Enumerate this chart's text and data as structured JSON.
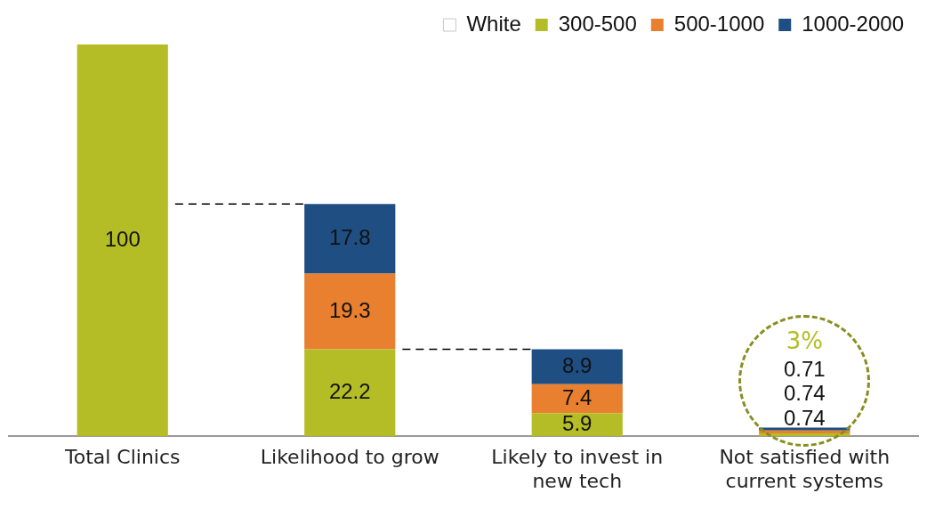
{
  "chart_data": {
    "type": "bar",
    "stacked": true,
    "data_labels": true,
    "grid": false,
    "legend": "top",
    "tick_labels": "x",
    "categories": [
      "Total Clinics",
      "Likelihood to grow",
      "Likely to invest in new tech",
      "Not satisfied with current systems"
    ],
    "series": [
      {
        "name": "White",
        "color": "#ffffff",
        "values": [
          null,
          null,
          null,
          null
        ]
      },
      {
        "name": "300-500",
        "color": "#b5bd26",
        "values": [
          100,
          22.2,
          5.9,
          0.74
        ]
      },
      {
        "name": "500-1000",
        "color": "#e8802f",
        "values": [
          null,
          19.3,
          7.4,
          0.74
        ]
      },
      {
        "name": "1000-2000",
        "color": "#1f4e82",
        "values": [
          null,
          17.8,
          8.9,
          0.71
        ]
      }
    ],
    "ref_lines": [
      {
        "axis": "y",
        "value": 59.3,
        "color": "#000000",
        "line_style": "dashed"
      },
      {
        "axis": "y",
        "value": 22.2,
        "color": "#000000",
        "line_style": "dashed"
      }
    ],
    "annotations": [
      "3%"
    ]
  }
}
